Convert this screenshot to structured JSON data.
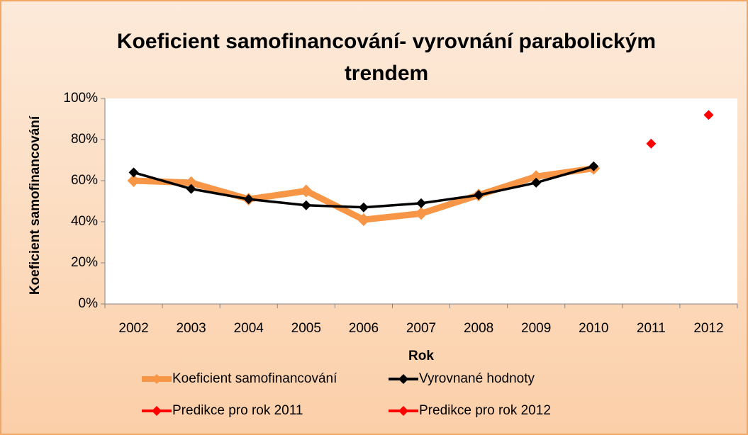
{
  "chart_data": {
    "type": "line",
    "title": "Koeficient samofinancování- vyrovnání parabolickým trendem",
    "x_label": "Rok",
    "y_label": "Koeficient samofinancování",
    "categories": [
      "2002",
      "2003",
      "2004",
      "2005",
      "2006",
      "2007",
      "2008",
      "2009",
      "2010",
      "2011",
      "2012"
    ],
    "series": [
      {
        "name": "Koeficient samofinancování",
        "color": "#f79646",
        "values": [
          60,
          59,
          51,
          55,
          41,
          44,
          53,
          62,
          66,
          null,
          null
        ]
      },
      {
        "name": "Vyrovnané hodnoty",
        "color": "#000000",
        "values": [
          64,
          56,
          51,
          48,
          47,
          49,
          53,
          59,
          67,
          null,
          null
        ]
      },
      {
        "name": "Predikce pro rok 2011",
        "color": "#ff0000",
        "values": [
          null,
          null,
          null,
          null,
          null,
          null,
          null,
          null,
          null,
          78,
          null
        ]
      },
      {
        "name": "Predikce pro rok 2012",
        "color": "#ff0000",
        "values": [
          null,
          null,
          null,
          null,
          null,
          null,
          null,
          null,
          null,
          null,
          92
        ]
      }
    ],
    "ylim": [
      0,
      100
    ],
    "yticks": [
      {
        "value": 0,
        "label": "0%"
      },
      {
        "value": 20,
        "label": "20%"
      },
      {
        "value": 40,
        "label": "40%"
      },
      {
        "value": 60,
        "label": "60%"
      },
      {
        "value": 80,
        "label": "80%"
      },
      {
        "value": 100,
        "label": "100%"
      }
    ],
    "grid": false,
    "legend": "bottom"
  }
}
